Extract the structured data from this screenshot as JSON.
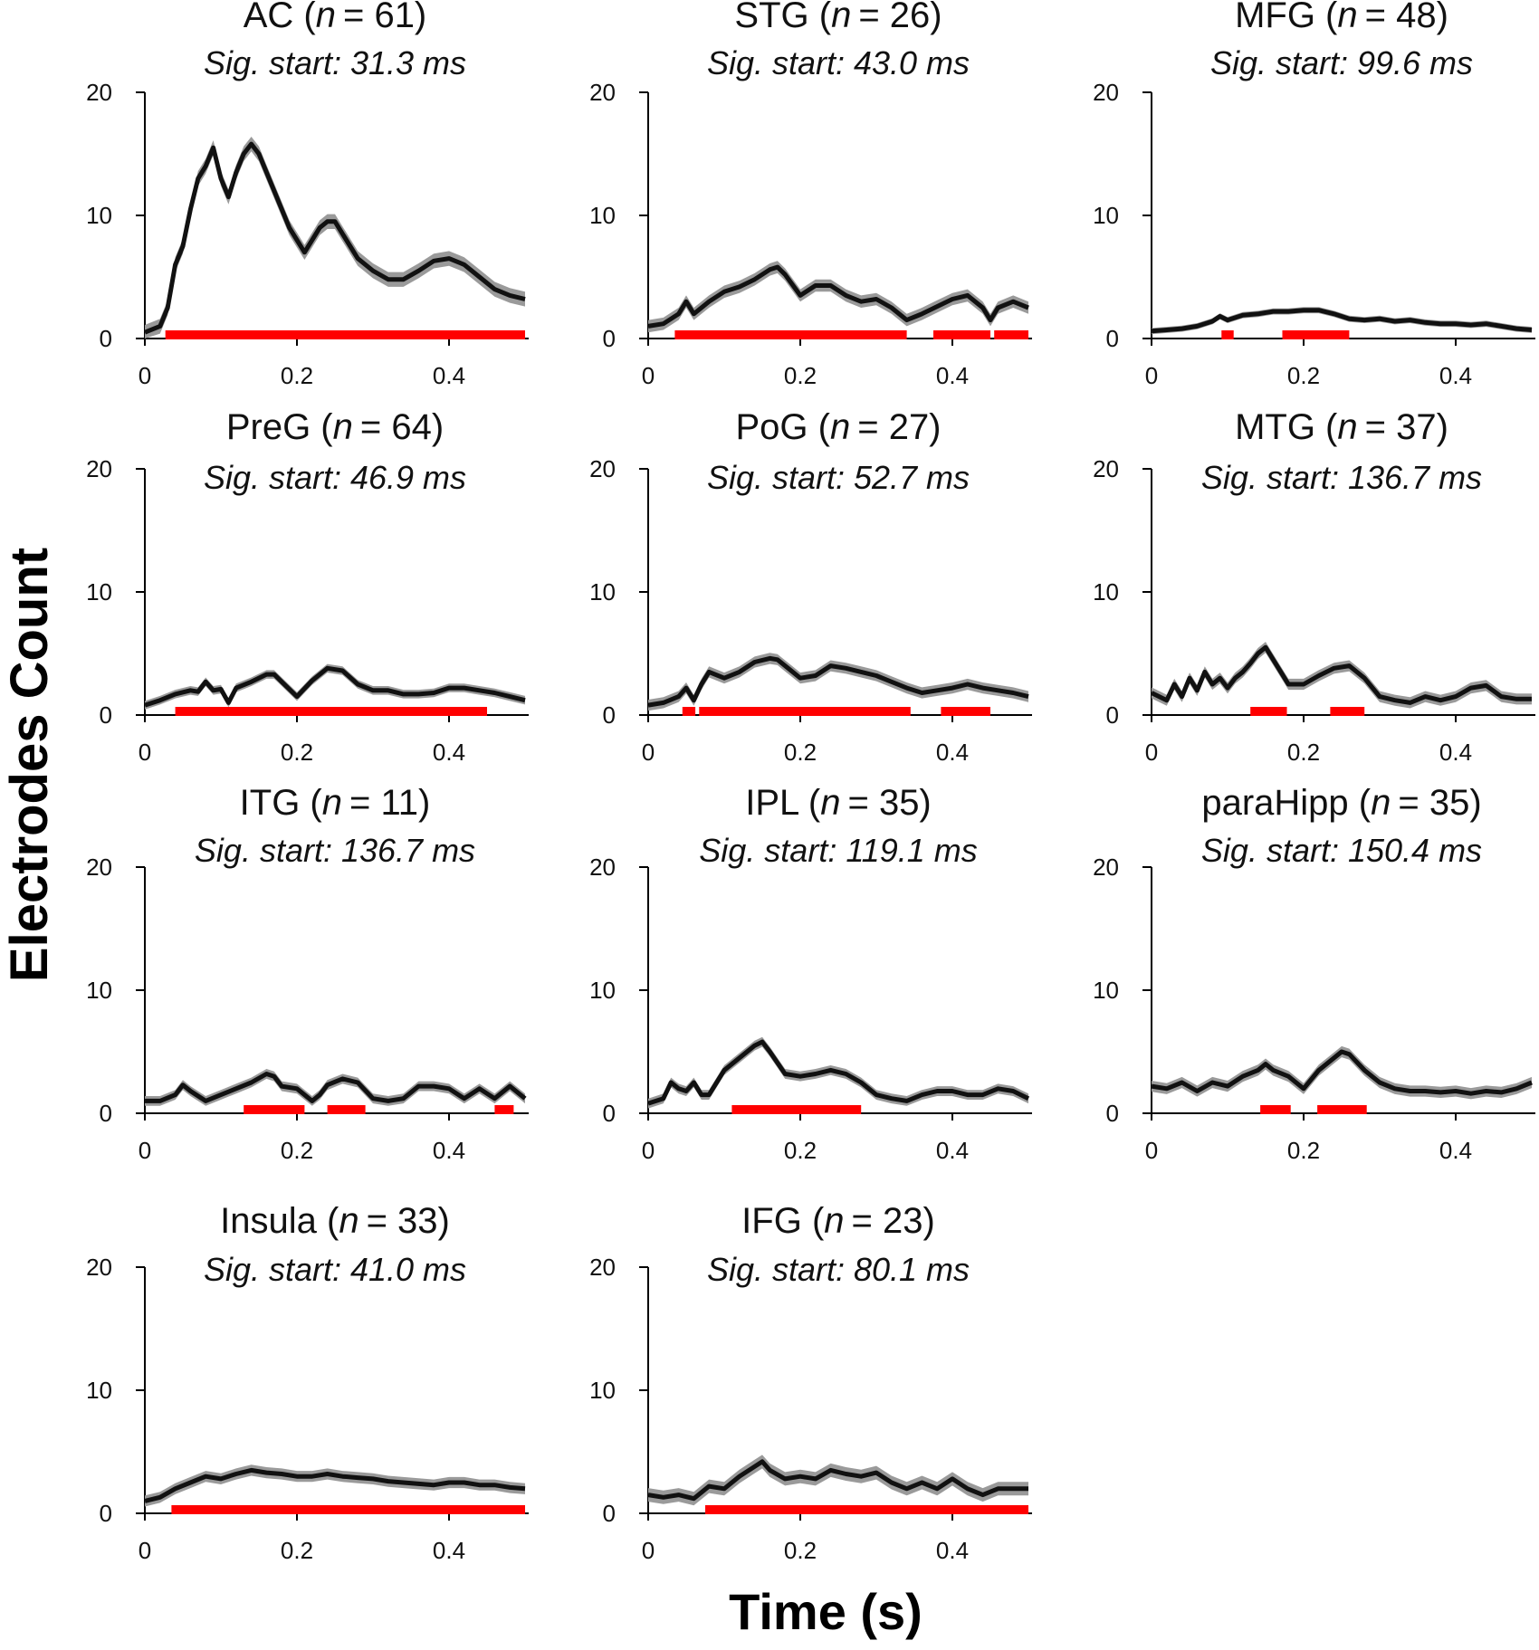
{
  "figure": {
    "ylabel": "Electrodes Count",
    "xlabel": "Time (s)"
  },
  "colors": {
    "line": "#111111",
    "band": "#9a9a9a",
    "sig": "#ff0000"
  },
  "chart_data": [
    {
      "type": "line",
      "region": "AC",
      "n_prefix": "n",
      "n_value": "= 61)",
      "title_open": "AC (",
      "subtitle": "Sig. start: 31.3 ms",
      "xlim": [
        0,
        0.5
      ],
      "ylim": [
        0,
        20
      ],
      "xticks": [
        "0",
        "0.2",
        "0.4"
      ],
      "yticks": [
        "0",
        "10",
        "20"
      ],
      "series": {
        "x": [
          0,
          0.02,
          0.03,
          0.04,
          0.05,
          0.06,
          0.07,
          0.08,
          0.09,
          0.1,
          0.11,
          0.12,
          0.13,
          0.14,
          0.15,
          0.16,
          0.17,
          0.18,
          0.19,
          0.2,
          0.21,
          0.22,
          0.23,
          0.24,
          0.25,
          0.26,
          0.27,
          0.28,
          0.3,
          0.32,
          0.34,
          0.36,
          0.38,
          0.4,
          0.42,
          0.44,
          0.46,
          0.48,
          0.5
        ],
        "y": [
          0.5,
          1.0,
          2.5,
          6.0,
          7.5,
          10.5,
          13.0,
          14.0,
          15.5,
          13.0,
          11.5,
          13.5,
          15.0,
          15.8,
          15.0,
          13.5,
          12.0,
          10.5,
          9.0,
          8.0,
          7.0,
          8.0,
          9.0,
          9.5,
          9.5,
          8.5,
          7.5,
          6.5,
          5.5,
          4.8,
          4.8,
          5.5,
          6.3,
          6.5,
          6.0,
          5.0,
          4.0,
          3.5,
          3.2
        ]
      },
      "band": 0.6,
      "significant": [
        [
          0.027,
          0.5
        ]
      ]
    },
    {
      "type": "line",
      "region": "STG",
      "n_prefix": "n",
      "n_value": "= 26)",
      "title_open": "STG (",
      "subtitle": "Sig. start: 43.0 ms",
      "xlim": [
        0,
        0.5
      ],
      "ylim": [
        0,
        20
      ],
      "xticks": [
        "0",
        "0.2",
        "0.4"
      ],
      "yticks": [
        "0",
        "10",
        "20"
      ],
      "series": {
        "x": [
          0,
          0.02,
          0.04,
          0.05,
          0.06,
          0.08,
          0.1,
          0.12,
          0.14,
          0.16,
          0.17,
          0.18,
          0.2,
          0.22,
          0.24,
          0.26,
          0.28,
          0.3,
          0.32,
          0.34,
          0.36,
          0.38,
          0.4,
          0.42,
          0.44,
          0.45,
          0.46,
          0.48,
          0.5
        ],
        "y": [
          1.0,
          1.2,
          2.0,
          3.0,
          2.0,
          3.0,
          3.8,
          4.2,
          4.8,
          5.6,
          5.8,
          5.2,
          3.5,
          4.3,
          4.3,
          3.5,
          3.0,
          3.2,
          2.5,
          1.5,
          2.0,
          2.6,
          3.2,
          3.5,
          2.5,
          1.5,
          2.5,
          3.0,
          2.5
        ]
      },
      "band": 0.5,
      "significant": [
        [
          0.035,
          0.34
        ],
        [
          0.375,
          0.45
        ],
        [
          0.455,
          0.5
        ]
      ]
    },
    {
      "type": "line",
      "region": "MFG",
      "n_prefix": "n",
      "n_value": "= 48)",
      "title_open": "MFG (",
      "subtitle": "Sig. start: 99.6 ms",
      "xlim": [
        0,
        0.5
      ],
      "ylim": [
        0,
        20
      ],
      "xticks": [
        "0",
        "0.2",
        "0.4"
      ],
      "yticks": [
        "0",
        "10",
        "20"
      ],
      "series": {
        "x": [
          0,
          0.02,
          0.04,
          0.06,
          0.08,
          0.09,
          0.1,
          0.12,
          0.14,
          0.16,
          0.18,
          0.2,
          0.22,
          0.24,
          0.26,
          0.28,
          0.3,
          0.32,
          0.34,
          0.36,
          0.38,
          0.4,
          0.42,
          0.44,
          0.46,
          0.48,
          0.5
        ],
        "y": [
          0.6,
          0.7,
          0.8,
          1.0,
          1.4,
          1.8,
          1.5,
          1.9,
          2.0,
          2.2,
          2.2,
          2.3,
          2.3,
          2.0,
          1.6,
          1.5,
          1.6,
          1.4,
          1.5,
          1.3,
          1.2,
          1.2,
          1.1,
          1.2,
          1.0,
          0.8,
          0.7
        ]
      },
      "band": 0.25,
      "significant": [
        [
          0.092,
          0.108
        ],
        [
          0.172,
          0.26
        ]
      ]
    },
    {
      "type": "line",
      "region": "PreG",
      "n_prefix": "n",
      "n_value": "= 64)",
      "title_open": "PreG (",
      "subtitle": "Sig. start: 46.9 ms",
      "xlim": [
        0,
        0.5
      ],
      "ylim": [
        0,
        20
      ],
      "xticks": [
        "0",
        "0.2",
        "0.4"
      ],
      "yticks": [
        "0",
        "10",
        "20"
      ],
      "series": {
        "x": [
          0,
          0.02,
          0.04,
          0.06,
          0.07,
          0.08,
          0.09,
          0.1,
          0.11,
          0.12,
          0.14,
          0.16,
          0.17,
          0.18,
          0.2,
          0.22,
          0.24,
          0.26,
          0.28,
          0.3,
          0.32,
          0.34,
          0.36,
          0.38,
          0.4,
          0.42,
          0.44,
          0.46,
          0.48,
          0.5
        ],
        "y": [
          0.8,
          1.2,
          1.7,
          2.0,
          1.9,
          2.7,
          2.0,
          2.1,
          1.0,
          2.2,
          2.7,
          3.3,
          3.3,
          2.7,
          1.5,
          2.8,
          3.8,
          3.6,
          2.5,
          2.0,
          2.0,
          1.7,
          1.7,
          1.8,
          2.2,
          2.2,
          2.0,
          1.8,
          1.5,
          1.2
        ]
      },
      "band": 0.35,
      "significant": [
        [
          0.04,
          0.45
        ]
      ]
    },
    {
      "type": "line",
      "region": "PoG",
      "n_prefix": "n",
      "n_value": "= 27)",
      "title_open": "PoG (",
      "subtitle": "Sig. start: 52.7 ms",
      "xlim": [
        0,
        0.5
      ],
      "ylim": [
        0,
        20
      ],
      "xticks": [
        "0",
        "0.2",
        "0.4"
      ],
      "yticks": [
        "0",
        "10",
        "20"
      ],
      "series": {
        "x": [
          0,
          0.02,
          0.04,
          0.05,
          0.06,
          0.07,
          0.08,
          0.1,
          0.12,
          0.14,
          0.16,
          0.17,
          0.18,
          0.2,
          0.22,
          0.24,
          0.26,
          0.28,
          0.3,
          0.32,
          0.34,
          0.36,
          0.38,
          0.4,
          0.42,
          0.44,
          0.46,
          0.48,
          0.5
        ],
        "y": [
          0.8,
          1.0,
          1.5,
          2.2,
          1.2,
          2.5,
          3.5,
          3.0,
          3.5,
          4.3,
          4.6,
          4.5,
          4.0,
          3.0,
          3.2,
          4.0,
          3.8,
          3.5,
          3.2,
          2.7,
          2.2,
          1.8,
          2.0,
          2.2,
          2.5,
          2.2,
          2.0,
          1.8,
          1.5
        ]
      },
      "band": 0.45,
      "significant": [
        [
          0.045,
          0.062
        ],
        [
          0.067,
          0.345
        ],
        [
          0.385,
          0.45
        ]
      ]
    },
    {
      "type": "line",
      "region": "MTG",
      "n_prefix": "n",
      "n_value": "= 37)",
      "title_open": "MTG (",
      "subtitle": "Sig. start: 136.7 ms",
      "xlim": [
        0,
        0.5
      ],
      "ylim": [
        0,
        20
      ],
      "xticks": [
        "0",
        "0.2",
        "0.4"
      ],
      "yticks": [
        "0",
        "10",
        "20"
      ],
      "series": {
        "x": [
          0,
          0.02,
          0.03,
          0.04,
          0.05,
          0.06,
          0.07,
          0.08,
          0.09,
          0.1,
          0.11,
          0.12,
          0.13,
          0.14,
          0.15,
          0.16,
          0.18,
          0.2,
          0.22,
          0.24,
          0.26,
          0.28,
          0.3,
          0.32,
          0.34,
          0.36,
          0.38,
          0.4,
          0.42,
          0.44,
          0.46,
          0.48,
          0.5
        ],
        "y": [
          1.8,
          1.2,
          2.5,
          1.5,
          3.0,
          2.0,
          3.5,
          2.5,
          3.0,
          2.2,
          3.0,
          3.5,
          4.2,
          5.0,
          5.5,
          4.5,
          2.5,
          2.5,
          3.2,
          3.8,
          4.0,
          3.0,
          1.5,
          1.2,
          1.0,
          1.5,
          1.2,
          1.5,
          2.2,
          2.4,
          1.5,
          1.3,
          1.3
        ]
      },
      "band": 0.45,
      "significant": [
        [
          0.13,
          0.178
        ],
        [
          0.235,
          0.28
        ]
      ]
    },
    {
      "type": "line",
      "region": "ITG",
      "n_prefix": "n",
      "n_value": "= 11)",
      "title_open": "ITG (",
      "subtitle": "Sig. start: 136.7 ms",
      "xlim": [
        0,
        0.5
      ],
      "ylim": [
        0,
        20
      ],
      "xticks": [
        "0",
        "0.2",
        "0.4"
      ],
      "yticks": [
        "0",
        "10",
        "20"
      ],
      "series": {
        "x": [
          0,
          0.02,
          0.04,
          0.05,
          0.06,
          0.08,
          0.1,
          0.12,
          0.14,
          0.16,
          0.17,
          0.18,
          0.2,
          0.22,
          0.23,
          0.24,
          0.26,
          0.28,
          0.3,
          0.32,
          0.34,
          0.36,
          0.38,
          0.4,
          0.42,
          0.44,
          0.46,
          0.48,
          0.5
        ],
        "y": [
          1.0,
          1.0,
          1.5,
          2.3,
          1.8,
          1.0,
          1.5,
          2.0,
          2.5,
          3.2,
          3.0,
          2.2,
          2.0,
          1.0,
          1.5,
          2.3,
          2.8,
          2.5,
          1.2,
          1.0,
          1.2,
          2.2,
          2.2,
          2.0,
          1.2,
          2.0,
          1.2,
          2.2,
          1.2
        ]
      },
      "band": 0.4,
      "significant": [
        [
          0.13,
          0.21
        ],
        [
          0.24,
          0.29
        ],
        [
          0.46,
          0.485
        ]
      ]
    },
    {
      "type": "line",
      "region": "IPL",
      "n_prefix": "n",
      "n_value": "= 35)",
      "title_open": "IPL (",
      "subtitle": "Sig. start: 119.1 ms",
      "xlim": [
        0,
        0.5
      ],
      "ylim": [
        0,
        20
      ],
      "xticks": [
        "0",
        "0.2",
        "0.4"
      ],
      "yticks": [
        "0",
        "10",
        "20"
      ],
      "series": {
        "x": [
          0,
          0.02,
          0.03,
          0.04,
          0.05,
          0.06,
          0.07,
          0.08,
          0.1,
          0.12,
          0.14,
          0.15,
          0.16,
          0.18,
          0.2,
          0.22,
          0.24,
          0.26,
          0.28,
          0.3,
          0.32,
          0.34,
          0.36,
          0.38,
          0.4,
          0.42,
          0.44,
          0.46,
          0.48,
          0.5
        ],
        "y": [
          0.8,
          1.2,
          2.5,
          2.0,
          1.8,
          2.5,
          1.5,
          1.5,
          3.5,
          4.5,
          5.5,
          5.8,
          5.0,
          3.2,
          3.0,
          3.2,
          3.5,
          3.2,
          2.5,
          1.5,
          1.2,
          1.0,
          1.5,
          1.8,
          1.8,
          1.5,
          1.5,
          2.0,
          1.8,
          1.2
        ]
      },
      "band": 0.4,
      "significant": [
        [
          0.11,
          0.28
        ]
      ]
    },
    {
      "type": "line",
      "region": "paraHipp",
      "n_prefix": "n",
      "n_value": "= 35)",
      "title_open": "paraHipp (",
      "subtitle": "Sig. start: 150.4 ms",
      "xlim": [
        0,
        0.5
      ],
      "ylim": [
        0,
        20
      ],
      "xticks": [
        "0",
        "0.2",
        "0.4"
      ],
      "yticks": [
        "0",
        "10",
        "20"
      ],
      "series": {
        "x": [
          0,
          0.02,
          0.04,
          0.06,
          0.08,
          0.1,
          0.12,
          0.14,
          0.15,
          0.16,
          0.18,
          0.2,
          0.22,
          0.24,
          0.25,
          0.26,
          0.28,
          0.3,
          0.32,
          0.34,
          0.36,
          0.38,
          0.4,
          0.42,
          0.44,
          0.46,
          0.48,
          0.5
        ],
        "y": [
          2.2,
          2.0,
          2.5,
          1.8,
          2.5,
          2.2,
          3.0,
          3.5,
          4.0,
          3.5,
          3.0,
          2.0,
          3.5,
          4.5,
          5.0,
          4.8,
          3.5,
          2.5,
          2.0,
          1.8,
          1.8,
          1.7,
          1.8,
          1.6,
          1.8,
          1.7,
          2.0,
          2.5
        ]
      },
      "band": 0.45,
      "significant": [
        [
          0.143,
          0.183
        ],
        [
          0.218,
          0.283
        ]
      ]
    },
    {
      "type": "line",
      "region": "Insula",
      "n_prefix": "n",
      "n_value": "= 33)",
      "title_open": "Insula (",
      "subtitle": "Sig. start: 41.0 ms",
      "xlim": [
        0,
        0.5
      ],
      "ylim": [
        0,
        20
      ],
      "xticks": [
        "0",
        "0.2",
        "0.4"
      ],
      "yticks": [
        "0",
        "10",
        "20"
      ],
      "series": {
        "x": [
          0,
          0.02,
          0.04,
          0.06,
          0.08,
          0.1,
          0.12,
          0.14,
          0.16,
          0.18,
          0.2,
          0.22,
          0.24,
          0.26,
          0.28,
          0.3,
          0.32,
          0.34,
          0.36,
          0.38,
          0.4,
          0.42,
          0.44,
          0.46,
          0.48,
          0.5
        ],
        "y": [
          1.0,
          1.3,
          2.0,
          2.5,
          3.0,
          2.8,
          3.2,
          3.5,
          3.3,
          3.2,
          3.0,
          3.0,
          3.2,
          3.0,
          2.9,
          2.8,
          2.6,
          2.5,
          2.4,
          2.3,
          2.5,
          2.5,
          2.3,
          2.3,
          2.1,
          2.0
        ]
      },
      "band": 0.45,
      "significant": [
        [
          0.035,
          0.5
        ]
      ]
    },
    {
      "type": "line",
      "region": "IFG",
      "n_prefix": "n",
      "n_value": "= 23)",
      "title_open": "IFG (",
      "subtitle": "Sig. start: 80.1 ms",
      "xlim": [
        0,
        0.5
      ],
      "ylim": [
        0,
        20
      ],
      "xticks": [
        "0",
        "0.2",
        "0.4"
      ],
      "yticks": [
        "0",
        "10",
        "20"
      ],
      "series": {
        "x": [
          0,
          0.02,
          0.04,
          0.06,
          0.08,
          0.1,
          0.12,
          0.14,
          0.15,
          0.16,
          0.18,
          0.2,
          0.22,
          0.24,
          0.26,
          0.28,
          0.3,
          0.32,
          0.34,
          0.36,
          0.38,
          0.4,
          0.42,
          0.44,
          0.46,
          0.48,
          0.5
        ],
        "y": [
          1.5,
          1.3,
          1.5,
          1.2,
          2.2,
          2.0,
          3.0,
          3.8,
          4.2,
          3.5,
          2.8,
          3.0,
          2.8,
          3.5,
          3.2,
          3.0,
          3.3,
          2.5,
          2.0,
          2.5,
          2.0,
          2.8,
          2.0,
          1.5,
          2.0,
          2.0,
          2.0
        ]
      },
      "band": 0.55,
      "significant": [
        [
          0.075,
          0.5
        ]
      ]
    }
  ]
}
